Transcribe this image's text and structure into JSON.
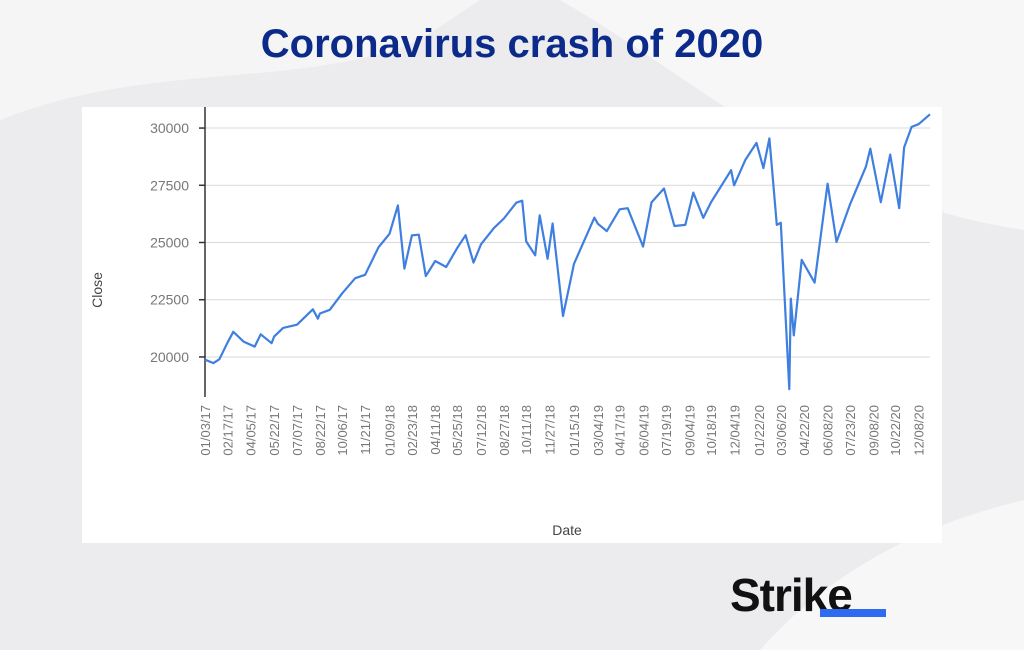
{
  "chart_data": {
    "type": "line",
    "title": "Coronavirus crash of 2020",
    "x_label": "Date",
    "y_label": "Close",
    "color": "#3f7fe0",
    "grid": true,
    "ylim": [
      18250,
      30920
    ],
    "yticks": [
      20000,
      22500,
      25000,
      27500,
      30000
    ],
    "xlim": [
      "01/03/17",
      "12/31/20"
    ],
    "xticks": [
      "01/03/17",
      "02/17/17",
      "04/05/17",
      "05/22/17",
      "07/07/17",
      "08/22/17",
      "10/06/17",
      "11/21/17",
      "01/09/18",
      "02/23/18",
      "04/11/18",
      "05/25/18",
      "07/12/18",
      "08/27/18",
      "10/11/18",
      "11/27/18",
      "01/15/19",
      "03/04/19",
      "04/17/19",
      "06/04/19",
      "07/19/19",
      "09/04/19",
      "10/18/19",
      "12/04/19",
      "01/22/20",
      "03/06/20",
      "04/22/20",
      "06/08/20",
      "07/23/20",
      "09/08/20",
      "10/22/20",
      "12/08/20"
    ],
    "x": [
      "01/03/17",
      "01/20/17",
      "02/01/17",
      "02/17/17",
      "03/01/17",
      "03/22/17",
      "04/13/17",
      "04/25/17",
      "05/17/17",
      "05/22/17",
      "06/09/17",
      "07/07/17",
      "08/08/17",
      "08/18/17",
      "08/22/17",
      "09/11/17",
      "10/06/17",
      "11/01/17",
      "11/21/17",
      "12/18/17",
      "01/09/18",
      "01/26/18",
      "02/08/18",
      "02/23/18",
      "03/09/18",
      "03/23/18",
      "04/11/18",
      "05/03/18",
      "05/25/18",
      "06/11/18",
      "06/27/18",
      "07/12/18",
      "08/07/18",
      "08/27/18",
      "09/21/18",
      "10/03/18",
      "10/11/18",
      "10/29/18",
      "11/07/18",
      "11/23/18",
      "12/03/18",
      "12/24/18",
      "01/15/19",
      "02/25/19",
      "03/04/19",
      "03/22/19",
      "04/17/19",
      "05/03/19",
      "06/03/19",
      "06/20/19",
      "07/15/19",
      "08/05/19",
      "08/27/19",
      "09/12/19",
      "10/02/19",
      "10/18/19",
      "11/27/19",
      "12/03/19",
      "12/26/19",
      "01/17/20",
      "01/31/20",
      "02/12/20",
      "02/27/20",
      "03/06/20",
      "03/23/20",
      "03/26/20",
      "04/01/20",
      "04/17/20",
      "05/13/20",
      "06/08/20",
      "06/26/20",
      "07/23/20",
      "08/24/20",
      "09/02/20",
      "09/23/20",
      "10/12/20",
      "10/30/20",
      "11/09/20",
      "11/24/20",
      "12/08/20",
      "12/31/20"
    ],
    "values": [
      19880,
      19730,
      19900,
      20620,
      21100,
      20660,
      20450,
      20990,
      20600,
      20890,
      21270,
      21410,
      22080,
      21670,
      21900,
      22060,
      22780,
      23440,
      23590,
      24790,
      25380,
      26620,
      23860,
      25310,
      25340,
      23530,
      24190,
      23930,
      24750,
      25320,
      24120,
      24920,
      25630,
      26050,
      26740,
      26830,
      25050,
      24440,
      26190,
      24290,
      25830,
      21790,
      24070,
      26090,
      25820,
      25500,
      26450,
      26500,
      24820,
      26750,
      27360,
      25720,
      25770,
      27180,
      26080,
      26770,
      28160,
      27500,
      28620,
      29350,
      28250,
      29550,
      25770,
      25860,
      18590,
      22550,
      20940,
      24240,
      23250,
      27570,
      25020,
      26650,
      28310,
      29100,
      26760,
      28840,
      26500,
      29150,
      30050,
      30170,
      30600
    ]
  },
  "brand": "Strike"
}
